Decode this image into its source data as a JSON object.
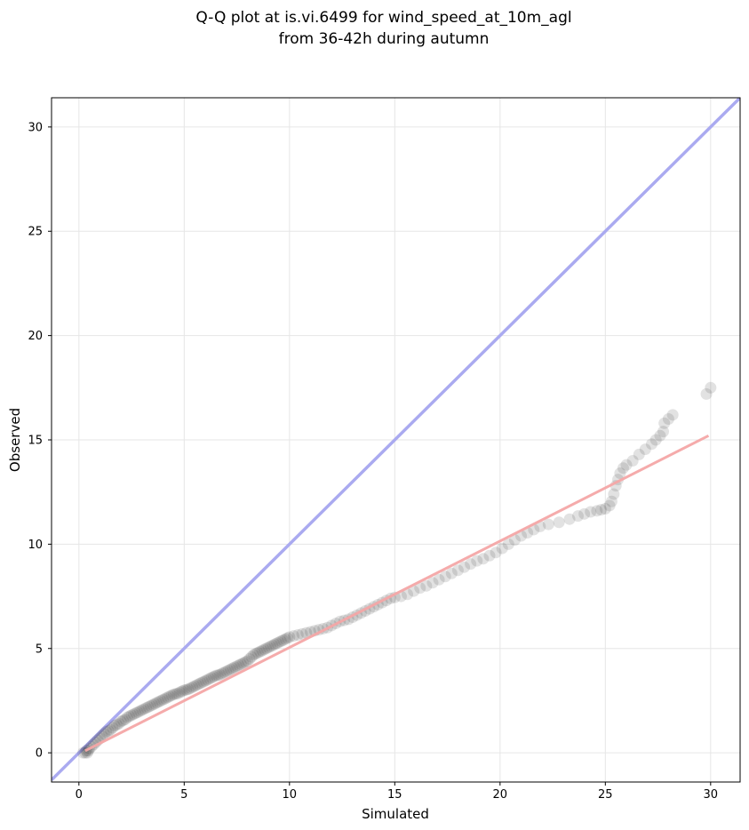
{
  "chart_data": {
    "type": "scatter",
    "title": [
      "Q-Q plot at is.vi.6499 for wind_speed_at_10m_agl",
      "from 36-42h during autumn"
    ],
    "xlabel": "Simulated",
    "ylabel": "Observed",
    "xlim": [
      -1.3,
      31.4
    ],
    "ylim": [
      -1.4,
      31.4
    ],
    "x_ticks": [
      0,
      5,
      10,
      15,
      20,
      25,
      30
    ],
    "y_ticks": [
      0,
      5,
      10,
      15,
      20,
      25,
      30
    ],
    "grid": true,
    "identity_line": {
      "color": "#aaaaf0",
      "from": [
        -1.3,
        -1.3
      ],
      "to": [
        31.4,
        31.4
      ]
    },
    "fit_line": {
      "color": "#f4a6a6",
      "from": [
        0.3,
        0.1
      ],
      "to": [
        29.9,
        15.2
      ]
    },
    "point_color": "#333333",
    "series": [
      {
        "points": [
          [
            0.2,
            0.0
          ],
          [
            0.3,
            0.0
          ],
          [
            0.35,
            0.1
          ],
          [
            0.4,
            0.0
          ],
          [
            0.45,
            0.1
          ],
          [
            0.5,
            0.2
          ],
          [
            0.6,
            0.3
          ],
          [
            0.7,
            0.4
          ],
          [
            0.8,
            0.5
          ],
          [
            0.9,
            0.6
          ],
          [
            1.0,
            0.7
          ],
          [
            1.1,
            0.8
          ],
          [
            1.2,
            0.9
          ],
          [
            1.3,
            1.0
          ],
          [
            1.4,
            1.05
          ],
          [
            1.5,
            1.1
          ],
          [
            1.6,
            1.2
          ],
          [
            1.7,
            1.3
          ],
          [
            1.8,
            1.35
          ],
          [
            1.9,
            1.4
          ],
          [
            2.0,
            1.5
          ],
          [
            2.1,
            1.55
          ],
          [
            2.2,
            1.6
          ],
          [
            2.3,
            1.7
          ],
          [
            2.4,
            1.75
          ],
          [
            2.5,
            1.8
          ],
          [
            2.6,
            1.85
          ],
          [
            2.7,
            1.9
          ],
          [
            2.8,
            1.95
          ],
          [
            2.9,
            2.0
          ],
          [
            3.0,
            2.05
          ],
          [
            3.1,
            2.1
          ],
          [
            3.2,
            2.15
          ],
          [
            3.3,
            2.2
          ],
          [
            3.4,
            2.25
          ],
          [
            3.5,
            2.3
          ],
          [
            3.6,
            2.35
          ],
          [
            3.7,
            2.4
          ],
          [
            3.8,
            2.45
          ],
          [
            3.9,
            2.5
          ],
          [
            4.0,
            2.55
          ],
          [
            4.1,
            2.6
          ],
          [
            4.2,
            2.65
          ],
          [
            4.3,
            2.7
          ],
          [
            4.4,
            2.75
          ],
          [
            4.5,
            2.8
          ],
          [
            4.6,
            2.82
          ],
          [
            4.7,
            2.85
          ],
          [
            4.8,
            2.9
          ],
          [
            4.9,
            2.95
          ],
          [
            5.0,
            3.0
          ],
          [
            5.1,
            3.02
          ],
          [
            5.2,
            3.05
          ],
          [
            5.3,
            3.1
          ],
          [
            5.4,
            3.15
          ],
          [
            5.5,
            3.2
          ],
          [
            5.6,
            3.25
          ],
          [
            5.7,
            3.3
          ],
          [
            5.8,
            3.35
          ],
          [
            5.9,
            3.4
          ],
          [
            6.0,
            3.45
          ],
          [
            6.1,
            3.5
          ],
          [
            6.2,
            3.55
          ],
          [
            6.3,
            3.6
          ],
          [
            6.4,
            3.65
          ],
          [
            6.5,
            3.7
          ],
          [
            6.6,
            3.72
          ],
          [
            6.7,
            3.75
          ],
          [
            6.8,
            3.8
          ],
          [
            6.9,
            3.85
          ],
          [
            7.0,
            3.9
          ],
          [
            7.1,
            3.95
          ],
          [
            7.2,
            4.0
          ],
          [
            7.3,
            4.05
          ],
          [
            7.4,
            4.1
          ],
          [
            7.5,
            4.15
          ],
          [
            7.6,
            4.2
          ],
          [
            7.7,
            4.25
          ],
          [
            7.8,
            4.3
          ],
          [
            7.9,
            4.35
          ],
          [
            8.0,
            4.4
          ],
          [
            8.1,
            4.5
          ],
          [
            8.2,
            4.6
          ],
          [
            8.3,
            4.7
          ],
          [
            8.4,
            4.75
          ],
          [
            8.5,
            4.8
          ],
          [
            8.6,
            4.85
          ],
          [
            8.7,
            4.9
          ],
          [
            8.8,
            4.95
          ],
          [
            8.9,
            5.0
          ],
          [
            9.0,
            5.05
          ],
          [
            9.1,
            5.1
          ],
          [
            9.2,
            5.15
          ],
          [
            9.3,
            5.2
          ],
          [
            9.4,
            5.25
          ],
          [
            9.5,
            5.3
          ],
          [
            9.6,
            5.35
          ],
          [
            9.7,
            5.4
          ],
          [
            9.8,
            5.45
          ],
          [
            9.9,
            5.5
          ],
          [
            10.0,
            5.55
          ],
          [
            10.2,
            5.6
          ],
          [
            10.4,
            5.65
          ],
          [
            10.6,
            5.7
          ],
          [
            10.8,
            5.75
          ],
          [
            11.0,
            5.8
          ],
          [
            11.2,
            5.85
          ],
          [
            11.4,
            5.9
          ],
          [
            11.6,
            5.95
          ],
          [
            11.8,
            6.0
          ],
          [
            12.0,
            6.1
          ],
          [
            12.2,
            6.2
          ],
          [
            12.4,
            6.3
          ],
          [
            12.6,
            6.35
          ],
          [
            12.8,
            6.4
          ],
          [
            13.0,
            6.5
          ],
          [
            13.2,
            6.6
          ],
          [
            13.4,
            6.7
          ],
          [
            13.6,
            6.8
          ],
          [
            13.8,
            6.9
          ],
          [
            14.0,
            7.0
          ],
          [
            14.2,
            7.1
          ],
          [
            14.4,
            7.2
          ],
          [
            14.6,
            7.3
          ],
          [
            14.8,
            7.4
          ],
          [
            15.0,
            7.45
          ],
          [
            15.3,
            7.5
          ],
          [
            15.6,
            7.6
          ],
          [
            15.9,
            7.75
          ],
          [
            16.2,
            7.9
          ],
          [
            16.5,
            8.0
          ],
          [
            16.8,
            8.15
          ],
          [
            17.1,
            8.3
          ],
          [
            17.4,
            8.45
          ],
          [
            17.7,
            8.6
          ],
          [
            18.0,
            8.75
          ],
          [
            18.3,
            8.9
          ],
          [
            18.6,
            9.05
          ],
          [
            18.9,
            9.2
          ],
          [
            19.2,
            9.3
          ],
          [
            19.5,
            9.45
          ],
          [
            19.8,
            9.6
          ],
          [
            20.1,
            9.8
          ],
          [
            20.4,
            10.0
          ],
          [
            20.7,
            10.2
          ],
          [
            21.0,
            10.4
          ],
          [
            21.3,
            10.55
          ],
          [
            21.6,
            10.7
          ],
          [
            21.9,
            10.85
          ],
          [
            22.3,
            10.95
          ],
          [
            22.8,
            11.05
          ],
          [
            23.3,
            11.2
          ],
          [
            23.7,
            11.35
          ],
          [
            24.0,
            11.45
          ],
          [
            24.3,
            11.55
          ],
          [
            24.6,
            11.6
          ],
          [
            24.8,
            11.65
          ],
          [
            25.0,
            11.7
          ],
          [
            25.2,
            11.85
          ],
          [
            25.3,
            12.05
          ],
          [
            25.4,
            12.4
          ],
          [
            25.5,
            12.8
          ],
          [
            25.6,
            13.1
          ],
          [
            25.7,
            13.4
          ],
          [
            25.85,
            13.65
          ],
          [
            26.0,
            13.8
          ],
          [
            26.3,
            14.0
          ],
          [
            26.6,
            14.3
          ],
          [
            26.9,
            14.55
          ],
          [
            27.2,
            14.8
          ],
          [
            27.4,
            15.0
          ],
          [
            27.6,
            15.2
          ],
          [
            27.75,
            15.4
          ],
          [
            27.8,
            15.8
          ],
          [
            28.0,
            16.0
          ],
          [
            28.2,
            16.2
          ],
          [
            29.8,
            17.2
          ],
          [
            30.0,
            17.5
          ]
        ]
      }
    ]
  }
}
